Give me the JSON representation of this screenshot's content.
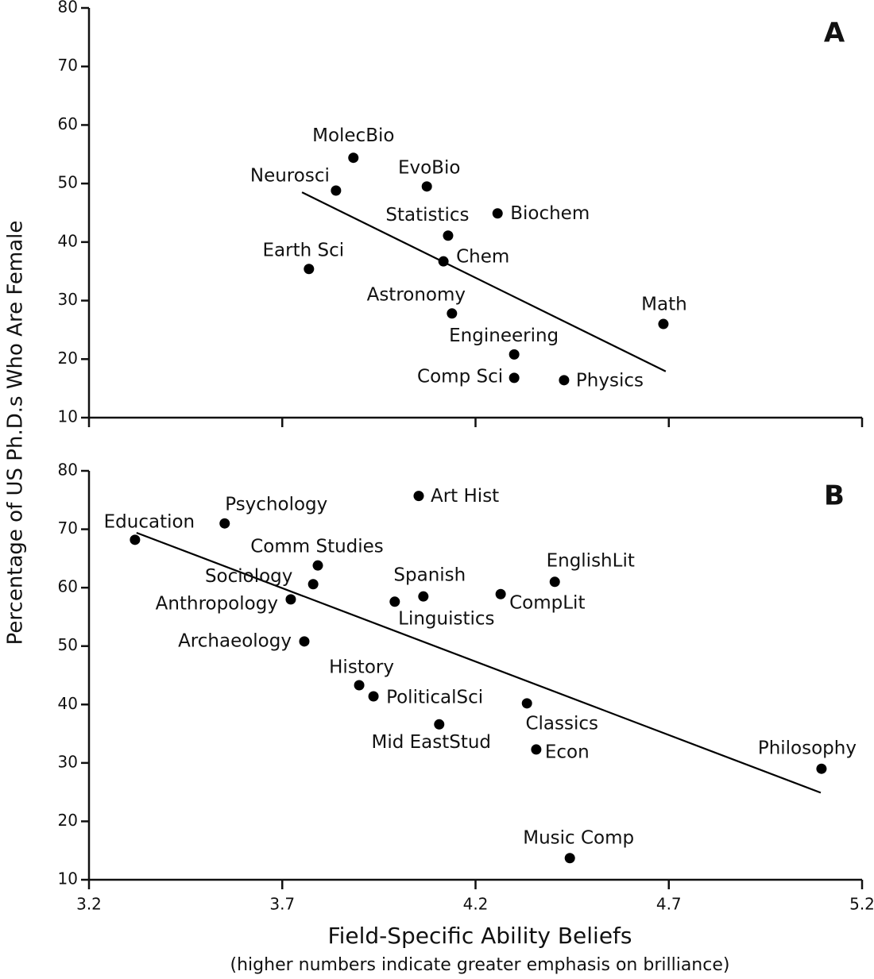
{
  "chart_data": [
    {
      "type": "scatter",
      "panel": "A",
      "ylabel": "Percentage of US Ph.D.s Who Are Female",
      "labels": [
        "MolecBio",
        "Neurosci",
        "EvoBio",
        "Biochem",
        "Statistics",
        "Chem",
        "Earth Sci",
        "Astronomy",
        "Math",
        "Engineering",
        "Comp Sci",
        "Physics"
      ],
      "x": [
        3.884,
        3.839,
        4.074,
        4.257,
        4.129,
        4.117,
        3.769,
        4.139,
        4.686,
        4.3,
        4.3,
        4.429
      ],
      "values": [
        54.4,
        48.8,
        49.5,
        44.9,
        41.1,
        36.7,
        35.4,
        27.8,
        26.0,
        20.8,
        16.8,
        16.4
      ],
      "trendline": {
        "x": [
          3.751,
          4.692
        ],
        "y": [
          48.5,
          17.9
        ]
      },
      "color": "#000000",
      "xlim": [
        3.2,
        5.2
      ],
      "xticks": [
        3.2,
        3.7,
        4.2,
        4.7,
        5.2
      ],
      "xtick_labels": false,
      "ylim": [
        10,
        80
      ],
      "yticks": [
        10,
        20,
        30,
        40,
        50,
        60,
        70,
        80
      ]
    },
    {
      "type": "scatter",
      "panel": "B",
      "xlabel": "Field-Specific Ability Beliefs",
      "xlabel_note": "(higher numbers indicate greater emphasis on brilliance)",
      "labels": [
        "Education",
        "Psychology",
        "Art Hist",
        "Comm Studies",
        "Sociology",
        "Anthropology",
        "Spanish",
        "Linguistics",
        "CompLit",
        "EnglishLit",
        "Archaeology",
        "History",
        "PoliticalSci",
        "Classics",
        "Mid EastStud",
        "Econ",
        "Philosophy",
        "Music Comp"
      ],
      "x": [
        3.319,
        3.551,
        4.053,
        3.792,
        3.78,
        3.722,
        4.065,
        3.991,
        4.265,
        4.405,
        3.757,
        3.899,
        3.936,
        4.333,
        4.106,
        4.357,
        5.095,
        4.444
      ],
      "values": [
        68.2,
        71.0,
        75.7,
        63.8,
        60.6,
        58.0,
        58.5,
        57.6,
        58.9,
        61.0,
        50.8,
        43.3,
        41.4,
        40.2,
        36.6,
        32.3,
        29.0,
        13.7
      ],
      "trendline": {
        "x": [
          3.323,
          5.093
        ],
        "y": [
          69.4,
          24.9
        ]
      },
      "color": "#000000",
      "xlim": [
        3.2,
        5.2
      ],
      "xticks": [
        3.2,
        3.7,
        4.2,
        4.7,
        5.2
      ],
      "xtick_labels": true,
      "ylim": [
        10,
        80
      ],
      "yticks": [
        10,
        20,
        30,
        40,
        50,
        60,
        70,
        80
      ]
    }
  ]
}
